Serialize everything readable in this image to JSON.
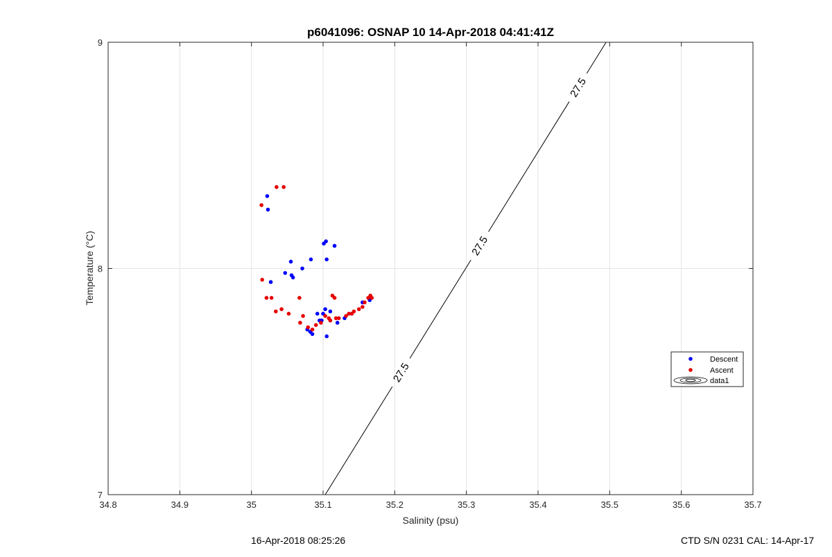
{
  "chart_data": {
    "type": "scatter",
    "title": "p6041096: OSNAP 10 14-Apr-2018 04:41:41Z",
    "xlabel": "Salinity (psu)",
    "ylabel": "Temperature (°C)",
    "xlim": [
      34.8,
      35.7
    ],
    "ylim": [
      7,
      9
    ],
    "xticks": [
      "34.8",
      "34.9",
      "35",
      "35.1",
      "35.2",
      "35.3",
      "35.4",
      "35.5",
      "35.6",
      "35.7"
    ],
    "yticks": [
      "7",
      "8",
      "9"
    ],
    "grid": true,
    "legend_position": "right",
    "series": [
      {
        "name": "Descent",
        "color": "#0000ff",
        "points": [
          [
            35.022,
            8.32
          ],
          [
            35.023,
            8.26
          ],
          [
            35.027,
            7.94
          ],
          [
            35.047,
            7.98
          ],
          [
            35.055,
            8.03
          ],
          [
            35.056,
            7.97
          ],
          [
            35.058,
            7.96
          ],
          [
            35.071,
            8.0
          ],
          [
            35.083,
            8.04
          ],
          [
            35.101,
            8.11
          ],
          [
            35.104,
            8.12
          ],
          [
            35.105,
            8.04
          ],
          [
            35.116,
            8.1
          ],
          [
            35.078,
            7.73
          ],
          [
            35.082,
            7.72
          ],
          [
            35.085,
            7.71
          ],
          [
            35.092,
            7.8
          ],
          [
            35.095,
            7.77
          ],
          [
            35.098,
            7.77
          ],
          [
            35.1,
            7.8
          ],
          [
            35.103,
            7.82
          ],
          [
            35.105,
            7.7
          ],
          [
            35.11,
            7.81
          ],
          [
            35.12,
            7.76
          ],
          [
            35.13,
            7.78
          ],
          [
            35.14,
            7.8
          ],
          [
            35.155,
            7.85
          ],
          [
            35.165,
            7.86
          ]
        ]
      },
      {
        "name": "Ascent",
        "color": "#e60000",
        "points": [
          [
            35.014,
            8.28
          ],
          [
            35.035,
            8.36
          ],
          [
            35.045,
            8.36
          ],
          [
            35.015,
            7.95
          ],
          [
            35.021,
            7.87
          ],
          [
            35.028,
            7.87
          ],
          [
            35.034,
            7.81
          ],
          [
            35.042,
            7.82
          ],
          [
            35.052,
            7.8
          ],
          [
            35.067,
            7.87
          ],
          [
            35.068,
            7.76
          ],
          [
            35.072,
            7.79
          ],
          [
            35.079,
            7.74
          ],
          [
            35.085,
            7.73
          ],
          [
            35.09,
            7.75
          ],
          [
            35.097,
            7.76
          ],
          [
            35.103,
            7.79
          ],
          [
            35.108,
            7.78
          ],
          [
            35.11,
            7.77
          ],
          [
            35.113,
            7.88
          ],
          [
            35.116,
            7.87
          ],
          [
            35.118,
            7.78
          ],
          [
            35.122,
            7.78
          ],
          [
            35.132,
            7.79
          ],
          [
            35.136,
            7.8
          ],
          [
            35.14,
            7.8
          ],
          [
            35.143,
            7.81
          ],
          [
            35.15,
            7.82
          ],
          [
            35.155,
            7.83
          ],
          [
            35.158,
            7.85
          ],
          [
            35.163,
            7.87
          ],
          [
            35.166,
            7.88
          ],
          [
            35.168,
            7.87
          ]
        ]
      }
    ],
    "contour": {
      "name": "data1",
      "level_label": "27.5",
      "start": [
        35.103,
        7.0
      ],
      "end": [
        35.495,
        9.0
      ],
      "label_positions": [
        0.27,
        0.55,
        0.9
      ]
    }
  },
  "footer": {
    "timestamp": "16-Apr-2018 08:25:26",
    "ctd_info": "CTD S/N 0231  CAL: 14-Apr-17"
  }
}
